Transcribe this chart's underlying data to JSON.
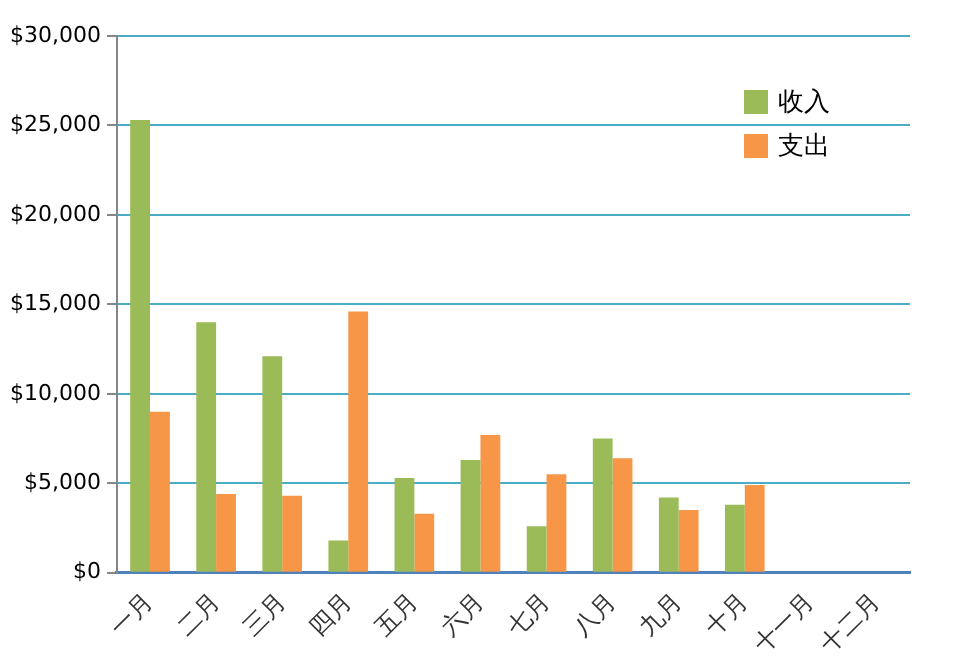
{
  "chart_data": {
    "type": "bar",
    "categories": [
      "一月",
      "二月",
      "三月",
      "四月",
      "五月",
      "六月",
      "七月",
      "八月",
      "九月",
      "十月",
      "十一月",
      "十二月"
    ],
    "series": [
      {
        "name": "收入",
        "color": "#9bbb59",
        "values": [
          25300,
          14000,
          12100,
          1800,
          5300,
          6300,
          2600,
          7500,
          4200,
          3800,
          null,
          null
        ]
      },
      {
        "name": "支出",
        "color": "#f79646",
        "values": [
          9000,
          4400,
          4300,
          14600,
          3300,
          7700,
          5500,
          6400,
          3500,
          4900,
          null,
          null
        ]
      }
    ],
    "ylim": [
      0,
      30000
    ],
    "yticks": [
      {
        "value": 0,
        "label": "$0"
      },
      {
        "value": 5000,
        "label": "$5,000"
      },
      {
        "value": 10000,
        "label": "$10,000"
      },
      {
        "value": 15000,
        "label": "$15,000"
      },
      {
        "value": 20000,
        "label": "$20,000"
      },
      {
        "value": 25000,
        "label": "$25,000"
      },
      {
        "value": 30000,
        "label": "$30,000"
      }
    ],
    "grid": "y",
    "legend": "top right"
  }
}
